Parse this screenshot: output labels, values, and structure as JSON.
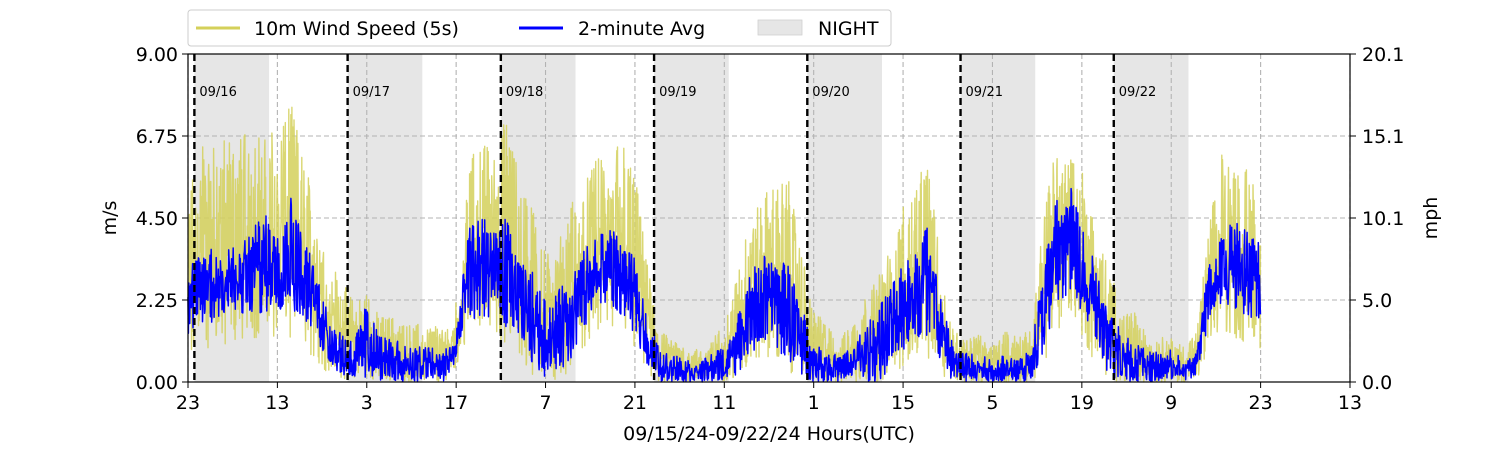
{
  "chart_data": {
    "type": "line",
    "xlabel": "09/15/24-09/22/24  Hours(UTC)",
    "ylabel_left": "m/s",
    "ylabel_right": "mph",
    "x_range_hours": [
      -1,
      181
    ],
    "y_range_ms": [
      0,
      9
    ],
    "x_tick_hours": [
      -1,
      13,
      27,
      41,
      55,
      69,
      83,
      97,
      111,
      125,
      139,
      153,
      167,
      181
    ],
    "x_tick_labels": [
      "23",
      "13",
      "3",
      "17",
      "7",
      "21",
      "11",
      "1",
      "15",
      "5",
      "19",
      "9",
      "23",
      "13"
    ],
    "y_ticks_left": [
      0,
      2.25,
      4.5,
      6.75,
      9
    ],
    "y_tick_labels_left": [
      "0.00",
      "2.25",
      "4.50",
      "6.75",
      "9.00"
    ],
    "y_tick_labels_right": [
      "0.0",
      "5.0",
      "10.1",
      "15.1",
      "20.1"
    ],
    "grid": true,
    "legend": {
      "placement": "top-left (above plot)",
      "entries": [
        {
          "label": "10m Wind Speed (5s)",
          "color": "#d4d05a",
          "kind": "line"
        },
        {
          "label": "2-minute Avg",
          "color": "#0000ff",
          "kind": "line"
        },
        {
          "label": "NIGHT",
          "color": "#e6e6e6",
          "kind": "patch"
        }
      ]
    },
    "day_markers": [
      {
        "hour": 0,
        "label": "09/16"
      },
      {
        "hour": 24,
        "label": "09/17"
      },
      {
        "hour": 48,
        "label": "09/18"
      },
      {
        "hour": 72,
        "label": "09/19"
      },
      {
        "hour": 96,
        "label": "09/20"
      },
      {
        "hour": 120,
        "label": "09/21"
      },
      {
        "hour": 144,
        "label": "09/22"
      }
    ],
    "night_periods_hours": [
      [
        0,
        11.7
      ],
      [
        24,
        35.7
      ],
      [
        48,
        59.7
      ],
      [
        72,
        83.7
      ],
      [
        96,
        107.7
      ],
      [
        120,
        131.7
      ],
      [
        144,
        155.7
      ]
    ],
    "series": [
      {
        "name": "10m Wind Speed (5s)",
        "color": "#d4d05a",
        "envelope_hours": [
          -1,
          1,
          3,
          5,
          7,
          9,
          11,
          13,
          15,
          17,
          19,
          21,
          23,
          25,
          27,
          29,
          31,
          33,
          35,
          37,
          39,
          41,
          43,
          45,
          47,
          49,
          51,
          53,
          55,
          57,
          59,
          61,
          63,
          65,
          67,
          69,
          71,
          73,
          75,
          77,
          79,
          81,
          83,
          85,
          87,
          89,
          91,
          93,
          95,
          97,
          99,
          101,
          103,
          105,
          107,
          109,
          111,
          113,
          115,
          117,
          119,
          121,
          123,
          125,
          127,
          129,
          131,
          133,
          135,
          137,
          139,
          141,
          143,
          145,
          147,
          149,
          151,
          153,
          155,
          157,
          159,
          161,
          163,
          165,
          167
        ],
        "max": [
          5.2,
          6.8,
          6.5,
          6.9,
          6.7,
          7.0,
          6.9,
          7.0,
          7.8,
          6.2,
          5.0,
          3.5,
          2.8,
          2.2,
          2.5,
          1.8,
          1.8,
          1.6,
          1.6,
          1.6,
          1.4,
          2.2,
          6.2,
          6.6,
          6.4,
          7.4,
          5.5,
          5.0,
          3.5,
          3.8,
          5.0,
          5.5,
          6.2,
          6.3,
          6.6,
          5.8,
          3.2,
          1.4,
          1.2,
          1.0,
          0.9,
          1.2,
          1.6,
          3.0,
          4.5,
          5.2,
          5.5,
          5.6,
          3.7,
          2.0,
          1.6,
          1.2,
          1.6,
          2.4,
          2.8,
          3.8,
          4.8,
          5.5,
          6.1,
          3.0,
          1.4,
          1.2,
          1.3,
          1.0,
          1.4,
          1.3,
          1.4,
          4.6,
          6.6,
          6.5,
          5.8,
          4.6,
          3.2,
          2.3,
          2.0,
          1.4,
          1.2,
          1.3,
          1.0,
          1.4,
          4.4,
          6.4,
          6.2,
          5.8,
          5.4
        ],
        "min": [
          0.5,
          0.8,
          1.0,
          0.9,
          1.0,
          1.2,
          1.1,
          1.3,
          1.2,
          1.0,
          0.6,
          0.2,
          0.1,
          0.0,
          0.0,
          0.0,
          0.0,
          0.0,
          0.0,
          0.0,
          0.0,
          0.3,
          1.0,
          1.3,
          1.2,
          1.0,
          0.5,
          0.2,
          0.0,
          0.1,
          0.3,
          0.8,
          1.2,
          1.4,
          1.2,
          0.8,
          0.2,
          0.0,
          0.0,
          0.0,
          0.0,
          0.0,
          0.0,
          0.0,
          0.3,
          0.6,
          0.5,
          0.3,
          0.1,
          0.0,
          0.0,
          0.0,
          0.0,
          0.0,
          0.0,
          0.1,
          0.4,
          0.8,
          0.6,
          0.2,
          0.0,
          0.0,
          0.0,
          0.0,
          0.0,
          0.0,
          0.0,
          0.3,
          1.4,
          1.6,
          1.2,
          0.5,
          0.1,
          0.0,
          0.0,
          0.0,
          0.0,
          0.0,
          0.0,
          0.0,
          0.8,
          1.4,
          1.2,
          1.0,
          0.9
        ]
      },
      {
        "name": "2-minute Avg",
        "color": "#0000ff",
        "envelope_hours": [
          -1,
          1,
          3,
          5,
          7,
          9,
          11,
          13,
          15,
          17,
          19,
          21,
          23,
          25,
          27,
          29,
          31,
          33,
          35,
          37,
          39,
          41,
          43,
          45,
          47,
          49,
          51,
          53,
          55,
          57,
          59,
          61,
          63,
          65,
          67,
          69,
          71,
          73,
          75,
          77,
          79,
          81,
          83,
          85,
          87,
          89,
          91,
          93,
          95,
          97,
          99,
          101,
          103,
          105,
          107,
          109,
          111,
          113,
          115,
          117,
          119,
          121,
          123,
          125,
          127,
          129,
          131,
          133,
          135,
          137,
          139,
          141,
          143,
          145,
          147,
          149,
          151,
          153,
          155,
          157,
          159,
          161,
          163,
          165,
          167
        ],
        "max": [
          3.4,
          3.5,
          3.8,
          4.0,
          3.8,
          4.2,
          4.6,
          4.4,
          5.2,
          4.0,
          3.2,
          2.0,
          1.4,
          1.2,
          2.2,
          1.3,
          1.2,
          1.1,
          1.0,
          1.0,
          0.8,
          1.4,
          4.2,
          4.6,
          4.3,
          4.6,
          3.3,
          3.0,
          2.2,
          2.5,
          3.0,
          3.6,
          4.1,
          4.3,
          3.8,
          3.4,
          1.9,
          0.8,
          0.8,
          0.6,
          0.5,
          0.8,
          1.0,
          1.8,
          3.0,
          3.5,
          3.4,
          3.2,
          2.2,
          1.0,
          0.9,
          0.7,
          1.0,
          1.5,
          2.0,
          2.6,
          3.2,
          3.6,
          4.8,
          2.2,
          0.9,
          0.8,
          0.8,
          0.6,
          0.8,
          0.7,
          0.9,
          3.4,
          5.0,
          5.6,
          4.2,
          3.3,
          2.0,
          1.5,
          1.2,
          0.9,
          0.8,
          0.9,
          0.6,
          0.9,
          3.4,
          4.0,
          4.6,
          4.2,
          3.8
        ],
        "min": [
          1.2,
          1.5,
          1.6,
          1.8,
          1.6,
          1.8,
          1.9,
          1.9,
          2.0,
          1.8,
          1.2,
          0.5,
          0.2,
          0.0,
          0.0,
          0.0,
          0.0,
          0.0,
          0.0,
          0.0,
          0.0,
          0.5,
          1.6,
          1.8,
          1.7,
          1.5,
          0.9,
          0.4,
          0.1,
          0.3,
          0.6,
          1.4,
          1.9,
          2.1,
          1.8,
          1.3,
          0.4,
          0.0,
          0.0,
          0.0,
          0.0,
          0.0,
          0.0,
          0.2,
          0.7,
          1.0,
          0.9,
          0.6,
          0.2,
          0.0,
          0.0,
          0.0,
          0.0,
          0.0,
          0.0,
          0.3,
          0.8,
          1.3,
          1.0,
          0.4,
          0.0,
          0.0,
          0.0,
          0.0,
          0.0,
          0.0,
          0.0,
          0.8,
          2.2,
          2.4,
          1.9,
          0.9,
          0.2,
          0.0,
          0.0,
          0.0,
          0.0,
          0.0,
          0.0,
          0.2,
          1.6,
          2.2,
          2.0,
          1.8,
          1.6
        ]
      }
    ]
  }
}
